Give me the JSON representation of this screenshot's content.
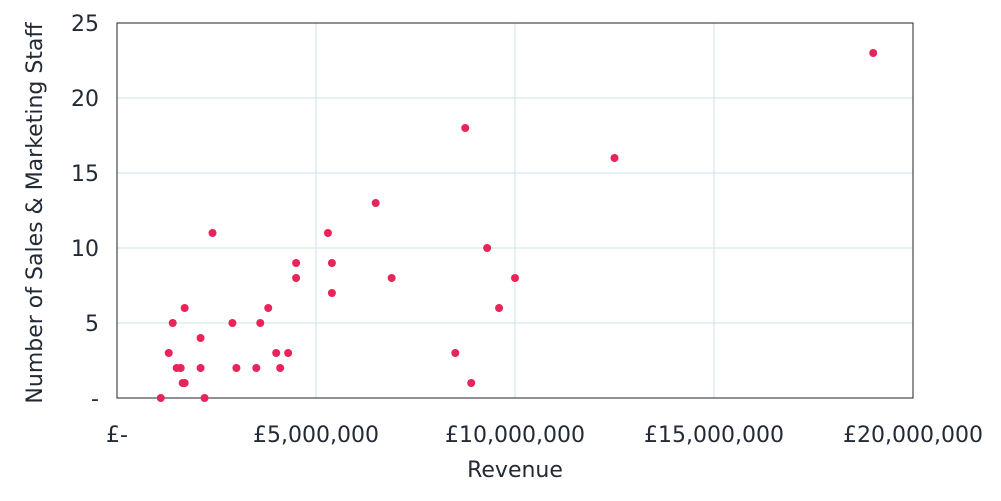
{
  "chart_data": {
    "type": "scatter",
    "xlabel": "Revenue",
    "ylabel": "Number of Sales & Marketing Staff",
    "xlim": [
      0,
      20000000
    ],
    "ylim": [
      0,
      25
    ],
    "x_ticks": [
      0,
      5000000,
      10000000,
      15000000,
      20000000
    ],
    "x_tick_labels": [
      "£-",
      "£5,000,000",
      "£10,000,000",
      "£15,000,000",
      "£20,000,000"
    ],
    "y_ticks": [
      0,
      5,
      10,
      15,
      20,
      25
    ],
    "y_tick_labels": [
      "-",
      "5",
      "10",
      "15",
      "20",
      "25"
    ],
    "grid": true,
    "marker_color": "#e8245a",
    "grid_color": "#cde3ea",
    "points": [
      {
        "x": 1100000,
        "y": 0
      },
      {
        "x": 1300000,
        "y": 3
      },
      {
        "x": 1400000,
        "y": 5
      },
      {
        "x": 1500000,
        "y": 2
      },
      {
        "x": 1600000,
        "y": 2
      },
      {
        "x": 1650000,
        "y": 1
      },
      {
        "x": 1700000,
        "y": 1
      },
      {
        "x": 1700000,
        "y": 6
      },
      {
        "x": 2100000,
        "y": 4
      },
      {
        "x": 2100000,
        "y": 2
      },
      {
        "x": 2200000,
        "y": 0
      },
      {
        "x": 2400000,
        "y": 11
      },
      {
        "x": 2900000,
        "y": 5
      },
      {
        "x": 3000000,
        "y": 2
      },
      {
        "x": 3500000,
        "y": 2
      },
      {
        "x": 3600000,
        "y": 5
      },
      {
        "x": 3800000,
        "y": 6
      },
      {
        "x": 4000000,
        "y": 3
      },
      {
        "x": 4100000,
        "y": 2
      },
      {
        "x": 4300000,
        "y": 3
      },
      {
        "x": 4500000,
        "y": 9
      },
      {
        "x": 4500000,
        "y": 8
      },
      {
        "x": 5300000,
        "y": 11
      },
      {
        "x": 5400000,
        "y": 9
      },
      {
        "x": 5400000,
        "y": 7
      },
      {
        "x": 6500000,
        "y": 13
      },
      {
        "x": 6900000,
        "y": 8
      },
      {
        "x": 8500000,
        "y": 3
      },
      {
        "x": 8750000,
        "y": 18
      },
      {
        "x": 8900000,
        "y": 1
      },
      {
        "x": 9300000,
        "y": 10
      },
      {
        "x": 9600000,
        "y": 6
      },
      {
        "x": 10000000,
        "y": 8
      },
      {
        "x": 12500000,
        "y": 16
      },
      {
        "x": 19000000,
        "y": 23
      }
    ]
  }
}
